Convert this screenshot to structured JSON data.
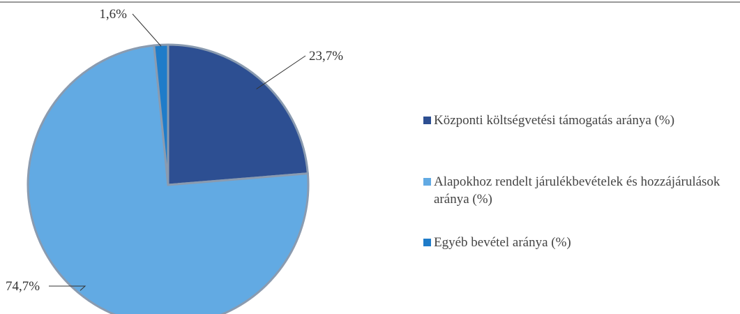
{
  "chart_data": {
    "type": "pie",
    "categories": [
      "Központi költségvetési támogatás aránya (%)",
      "Alapokhoz rendelt járulékbevételek és hozzájárulások aránya (%)",
      "Egyéb bevétel aránya (%)"
    ],
    "values": [
      23.7,
      74.7,
      1.6
    ],
    "value_labels": [
      "23,7%",
      "74,7%",
      "1,6%"
    ],
    "colors": [
      "#2d4f92",
      "#62aae3",
      "#1f7cc9"
    ],
    "legend": "right"
  }
}
